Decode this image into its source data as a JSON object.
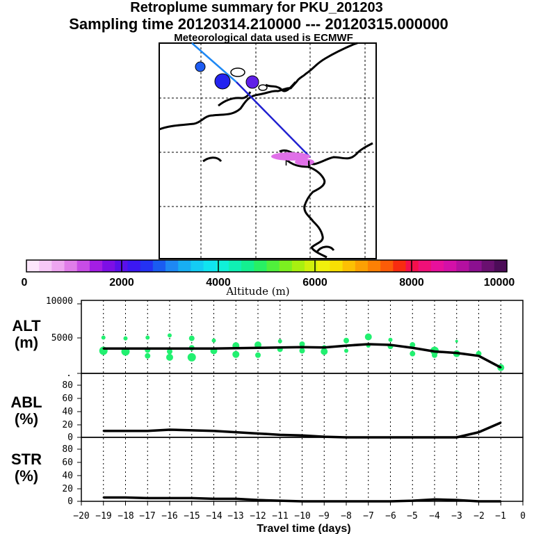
{
  "header": {
    "title": "Retroplume summary for PKU_201203",
    "sampling": "Sampling time   20120314.210000 --- 20120315.000000",
    "met": "Meteorological data used is ECMWF"
  },
  "colorbar": {
    "label": "Altitude (m)",
    "ticks": [
      "0",
      "2000",
      "4000",
      "6000",
      "8000",
      "10000"
    ],
    "colors": [
      "#fce6fb",
      "#f6c8f6",
      "#eea6f0",
      "#e07de9",
      "#c84ce6",
      "#a41ee4",
      "#7d0fe6",
      "#5a10ea",
      "#3c18f2",
      "#2432f4",
      "#1a5cf2",
      "#1e88f4",
      "#18aef2",
      "#14ccf4",
      "#10e4f0",
      "#10f0d8",
      "#10f0b4",
      "#14f090",
      "#28f064",
      "#50f03c",
      "#7cf020",
      "#a8f010",
      "#d0f00c",
      "#f0f00c",
      "#f8e004",
      "#fcc004",
      "#fca004",
      "#fc8004",
      "#fc5c08",
      "#f82c10",
      "#f4104c",
      "#f01078",
      "#e8109c",
      "#d410a8",
      "#b410a0",
      "#8c1090",
      "#6a1070",
      "#4c0c58"
    ]
  },
  "map_panel": {
    "trajectory_color_1": "#1e88f4",
    "trajectory_color_2": "#2020d0",
    "plume_color": "#e070e8",
    "receptor_marker": "I"
  },
  "x_axis": {
    "label": "Travel time (days)",
    "ticks": [
      "−20",
      "−19",
      "−18",
      "−17",
      "−16",
      "−15",
      "−14",
      "−13",
      "−12",
      "−11",
      "−10",
      "−9",
      "−8",
      "−7",
      "−6",
      "−5",
      "−4",
      "−3",
      "−2",
      "−1",
      "0"
    ]
  },
  "chart_data": [
    {
      "type": "line",
      "panel": "ALT",
      "ylabel_top": "ALT",
      "ylabel_bottom": "(m)",
      "ylim": [
        0,
        10000
      ],
      "y_ticks": [
        "10000",
        "5000",
        "."
      ],
      "x": [
        -19,
        -18,
        -17,
        -16,
        -15,
        -14,
        -13,
        -12,
        -11,
        -10,
        -9,
        -8,
        -7,
        -6,
        -5,
        -4,
        -3,
        -2,
        -1
      ],
      "series": [
        {
          "name": "mean altitude",
          "values": [
            3400,
            3400,
            3400,
            3400,
            3400,
            3400,
            3450,
            3500,
            3550,
            3600,
            3550,
            3800,
            4000,
            3900,
            3500,
            3000,
            2800,
            2400,
            800
          ]
        }
      ],
      "scatter_color": "#22f070",
      "scatter": {
        "x": [
          -19,
          -19,
          -18,
          -18,
          -17,
          -17,
          -17,
          -16,
          -16,
          -16,
          -15,
          -15,
          -15,
          -14,
          -14,
          -13,
          -13,
          -12,
          -12,
          -11,
          -11,
          -10,
          -10,
          -9,
          -9,
          -8,
          -8,
          -7,
          -7,
          -6,
          -6,
          -5,
          -5,
          -4,
          -4,
          -3,
          -3,
          -2,
          -1
        ],
        "y": [
          4900,
          3100,
          4800,
          3000,
          4900,
          3200,
          2400,
          5200,
          3000,
          2200,
          4800,
          2200,
          3500,
          4500,
          3100,
          3800,
          2600,
          3900,
          2500,
          4400,
          3300,
          4000,
          3100,
          3600,
          3000,
          4500,
          3100,
          5000,
          3800,
          4600,
          3700,
          3900,
          2700,
          3100,
          2500,
          4400,
          2700,
          2700,
          800
        ],
        "size": [
          3,
          6,
          3,
          6,
          3,
          4,
          4,
          3,
          4,
          5,
          4,
          6,
          4,
          3,
          5,
          5,
          5,
          5,
          4,
          3,
          4,
          4,
          4,
          3,
          5,
          4,
          3,
          5,
          3,
          3,
          4,
          4,
          4,
          6,
          4,
          2,
          5,
          4,
          5
        ]
      }
    },
    {
      "type": "line",
      "panel": "ABL",
      "ylabel_top": "ABL",
      "ylabel_bottom": "(%)",
      "ylim": [
        0,
        100
      ],
      "y_ticks": [
        "80",
        "60",
        "40",
        "20",
        "0"
      ],
      "x": [
        -19,
        -18,
        -17,
        -16,
        -15,
        -14,
        -13,
        -12,
        -11,
        -10,
        -9,
        -8,
        -7,
        -6,
        -5,
        -4,
        -3,
        -2,
        -1
      ],
      "series": [
        {
          "name": "ABL fraction",
          "values": [
            10,
            10,
            10,
            12,
            11,
            10,
            8,
            6,
            4,
            3,
            1,
            0,
            0,
            0,
            0,
            0,
            0,
            8,
            23
          ]
        }
      ]
    },
    {
      "type": "line",
      "panel": "STR",
      "ylabel_top": "STR",
      "ylabel_bottom": "(%)",
      "ylim": [
        0,
        100
      ],
      "y_ticks": [
        "80",
        "60",
        "40",
        "20",
        "0"
      ],
      "x": [
        -19,
        -18,
        -17,
        -16,
        -15,
        -14,
        -13,
        -12,
        -11,
        -10,
        -9,
        -8,
        -7,
        -6,
        -5,
        -4,
        -3,
        -2,
        -1
      ],
      "series": [
        {
          "name": "STR fraction",
          "values": [
            6,
            6,
            5,
            5,
            5,
            4,
            4,
            2,
            1,
            0,
            0,
            0,
            0,
            0,
            1,
            3,
            2,
            0,
            0
          ]
        }
      ]
    }
  ]
}
